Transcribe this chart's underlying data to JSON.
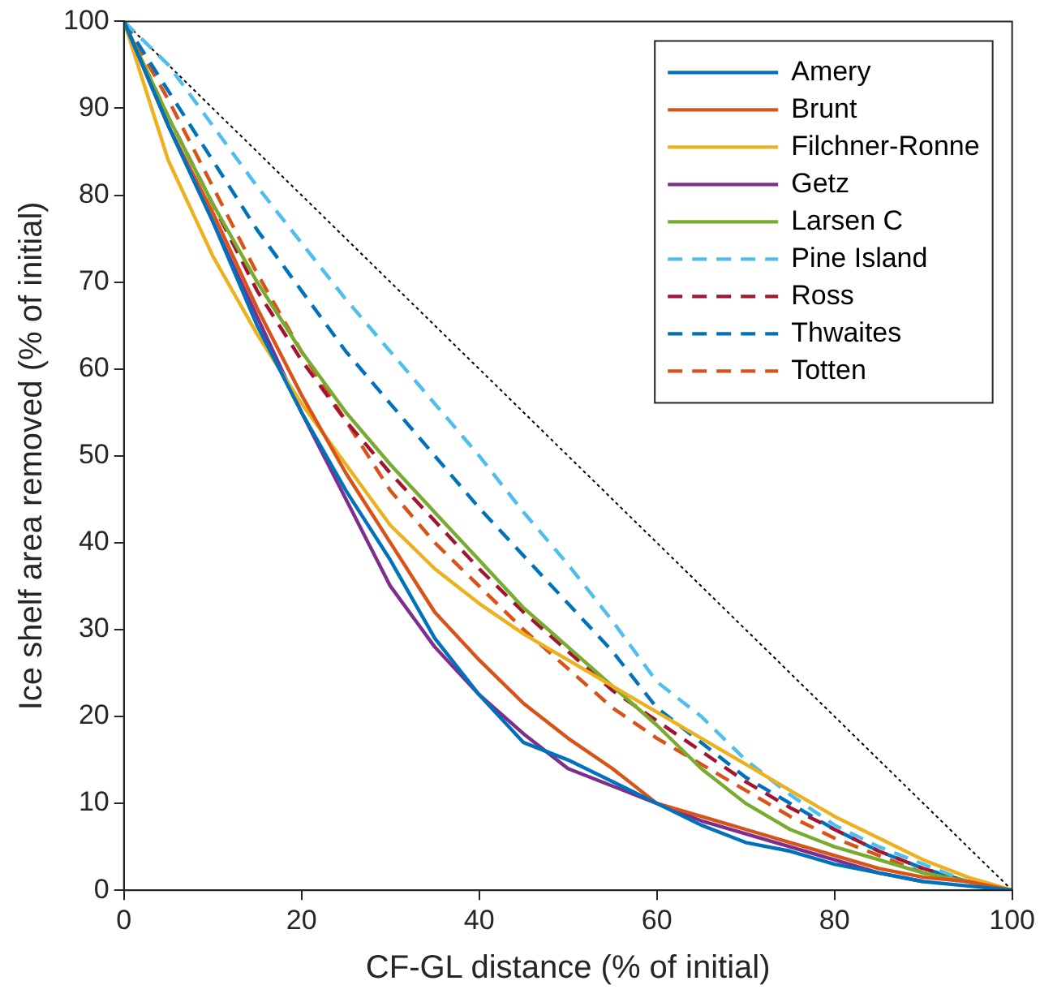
{
  "chart_data": {
    "type": "line",
    "xlabel": "CF-GL distance (% of initial)",
    "ylabel": "Ice shelf area removed (% of initial)",
    "x": [
      0,
      5,
      10,
      15,
      20,
      25,
      30,
      35,
      40,
      45,
      50,
      55,
      60,
      65,
      70,
      75,
      80,
      85,
      90,
      95,
      100
    ],
    "xlim": [
      0,
      100
    ],
    "xticks": [
      0,
      20,
      40,
      60,
      80,
      100
    ],
    "ylim": [
      0,
      100
    ],
    "yticks": [
      0,
      10,
      20,
      30,
      40,
      50,
      60,
      70,
      80,
      90,
      100
    ],
    "grid": false,
    "legend": "top right",
    "marker": "none",
    "series": [
      {
        "name": "Amery",
        "color": "#0072bd",
        "line_style": "solid",
        "values": [
          100,
          88,
          77,
          65,
          55,
          46,
          38,
          29,
          22.5,
          17,
          15,
          12.5,
          10,
          7.5,
          5.5,
          4.5,
          3,
          2,
          1,
          0.5,
          0
        ]
      },
      {
        "name": "Brunt",
        "color": "#d95319",
        "line_style": "solid",
        "values": [
          100,
          88,
          78,
          67,
          57,
          48,
          40,
          32,
          26.5,
          21.5,
          17.5,
          14,
          10,
          8.5,
          7,
          5.5,
          4,
          2.5,
          1.5,
          1,
          0
        ]
      },
      {
        "name": "Filchner-Ronne",
        "color": "#edb120",
        "line_style": "solid",
        "values": [
          100,
          84,
          73,
          64,
          56,
          49,
          42,
          37,
          33,
          29.5,
          26.5,
          23.5,
          20.5,
          17.5,
          14.5,
          11.5,
          8.5,
          6,
          3.5,
          1.5,
          0
        ]
      },
      {
        "name": "Getz",
        "color": "#7e2f8e",
        "line_style": "solid",
        "values": [
          100,
          88,
          77,
          66,
          55,
          45,
          35,
          28,
          22.5,
          18,
          14,
          12,
          10,
          8,
          6.5,
          5,
          3.5,
          2,
          1,
          null,
          null
        ]
      },
      {
        "name": "Larsen C",
        "color": "#77ac30",
        "line_style": "solid",
        "values": [
          100,
          89,
          79,
          70,
          62,
          55,
          49,
          43.5,
          38,
          32.5,
          28,
          23.5,
          19,
          14,
          10,
          7,
          5,
          3.5,
          2,
          1,
          0
        ]
      },
      {
        "name": "Pine Island",
        "color": "#4dbeee",
        "line_style": "dashed",
        "values": [
          100,
          95,
          88,
          81,
          74.5,
          68,
          62,
          56,
          50,
          43.5,
          37.5,
          31,
          24,
          20,
          15,
          11,
          7.5,
          5,
          3,
          1,
          0
        ]
      },
      {
        "name": "Ross",
        "color": "#a2142f",
        "line_style": "dashed",
        "values": [
          100,
          89,
          79,
          69,
          61,
          54,
          48,
          42.5,
          37,
          32,
          27.5,
          23,
          19.5,
          16,
          12.5,
          9.5,
          7,
          4.5,
          2.5,
          1,
          0
        ]
      },
      {
        "name": "Thwaites",
        "color": "#0072bd",
        "line_style": "dashed",
        "values": [
          100,
          92,
          84,
          76,
          69,
          62,
          56,
          50,
          44,
          38.5,
          33,
          27.5,
          21,
          17,
          13,
          10,
          7,
          4.5,
          2.5,
          1,
          0
        ]
      },
      {
        "name": "Totten",
        "color": "#d95319",
        "line_style": "dashed",
        "values": [
          100,
          91,
          81,
          71,
          62,
          54,
          46,
          40,
          35,
          30,
          25.5,
          21,
          17.5,
          14.5,
          11.5,
          8.5,
          6,
          4,
          2,
          1,
          0
        ]
      },
      {
        "color": "#000000",
        "line_style": "dotted",
        "x": [
          0,
          100
        ],
        "values": [
          100,
          0
        ]
      }
    ]
  }
}
